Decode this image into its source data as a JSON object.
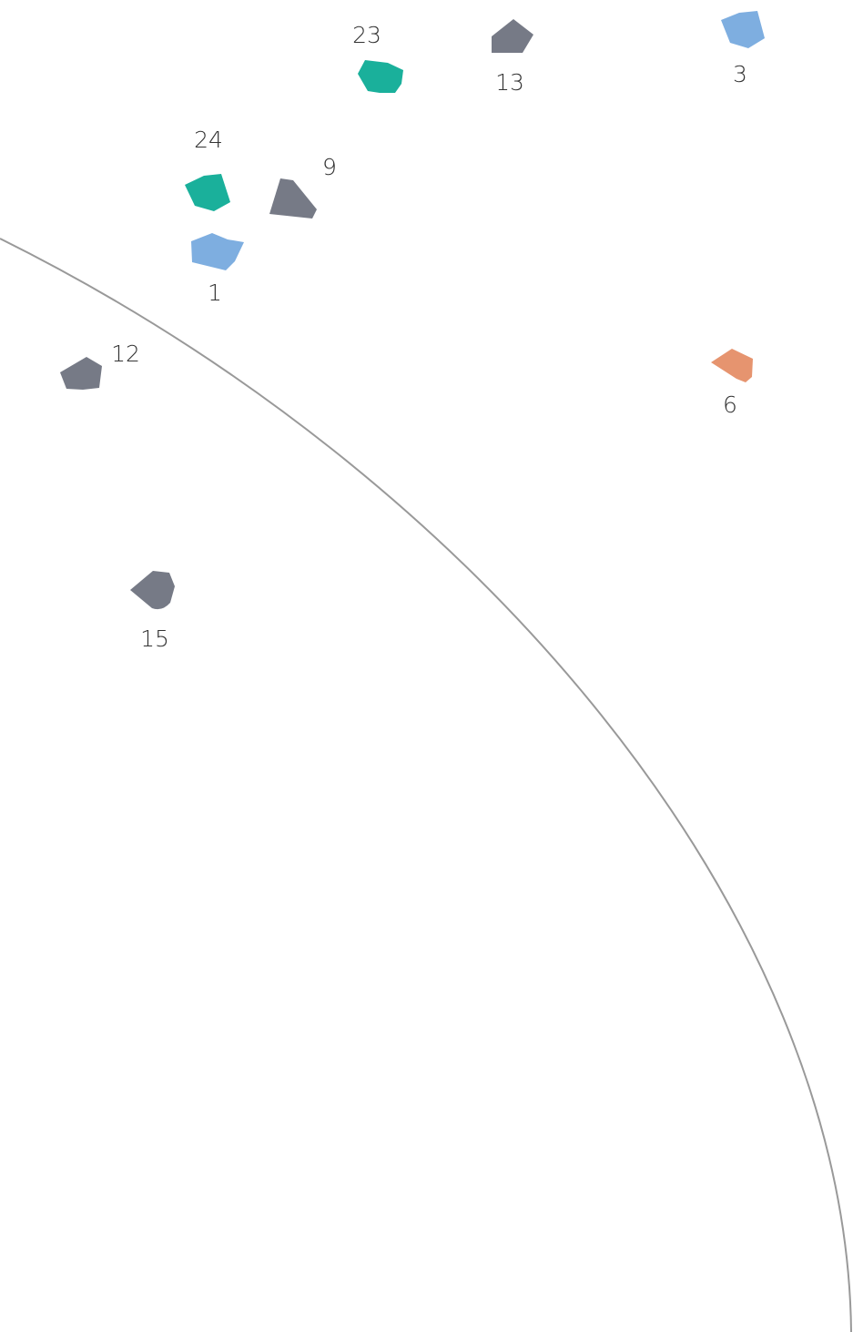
{
  "colors": {
    "background": "#ffffff",
    "arc": "#999999",
    "label": "#333333",
    "gray": "#767a86",
    "teal": "#1ab09b",
    "blue": "#7eaee0",
    "orange": "#e6946f"
  },
  "pieces": [
    {
      "id": "piece-23",
      "label": "23",
      "color": "teal"
    },
    {
      "id": "piece-13",
      "label": "13",
      "color": "gray"
    },
    {
      "id": "piece-3",
      "label": "3",
      "color": "blue"
    },
    {
      "id": "piece-24",
      "label": "24",
      "color": "teal"
    },
    {
      "id": "piece-9",
      "label": "9",
      "color": "gray"
    },
    {
      "id": "piece-1",
      "label": "1",
      "color": "blue"
    },
    {
      "id": "piece-12",
      "label": "12",
      "color": "gray"
    },
    {
      "id": "piece-6",
      "label": "6",
      "color": "orange"
    },
    {
      "id": "piece-15",
      "label": "15",
      "color": "gray"
    }
  ]
}
